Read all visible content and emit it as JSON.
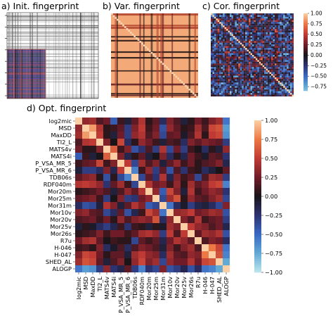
{
  "panels": {
    "a": {
      "title": "a) Init. fingerprint"
    },
    "b": {
      "title": "b) Var. fingerprint"
    },
    "c": {
      "title": "c) Cor. fingerprint"
    },
    "d": {
      "title": "d) Opt. fingerprint"
    }
  },
  "chart_data": [
    {
      "type": "heatmap",
      "panel": "a",
      "title": "a) Init. fingerprint",
      "description_values": "dense binary-like fingerprint matrix, mostly white/grey with black lines, colored band at bottom-left",
      "colors": [
        "#ffffff",
        "#000000",
        "#3b2f8f",
        "#c4505a"
      ]
    },
    {
      "type": "heatmap",
      "panel": "b",
      "title": "b) Var. fingerprint",
      "colors": [
        "#f6b889",
        "#e0753f",
        "#6b1c27",
        "#111111"
      ]
    },
    {
      "type": "heatmap",
      "panel": "c",
      "title": "c) Cor. fingerprint",
      "colorbar_ticks": [
        "1.00",
        "0.75",
        "0.50",
        "0.25",
        "0.00",
        "−0.25",
        "−0.50",
        "−0.75"
      ],
      "vmin": -0.85,
      "vmax": 1.0
    },
    {
      "type": "heatmap",
      "panel": "d",
      "title": "d) Opt. fingerprint",
      "variables": [
        "log2mic",
        "MSD",
        "MaxDD",
        "TI2_L",
        "MATS4v",
        "MATS4i",
        "P_VSA_MR_5",
        "P_VSA_MR_6",
        "TDB06s",
        "RDF040m",
        "Mor20m",
        "Mor25m",
        "Mor31m",
        "Mor10v",
        "Mor20v",
        "Mor25v",
        "Mor26s",
        "R7u",
        "H-046",
        "H-047",
        "SHED_AL",
        "ALOGP"
      ],
      "colorbar_ticks": [
        "1.00",
        "0.75",
        "0.50",
        "0.25",
        "0.00",
        "−0.25",
        "−0.50",
        "−0.75",
        "−1.00"
      ],
      "vmin": -1.0,
      "vmax": 1.0,
      "colormap": "icefire",
      "upper_triangle": [
        [
          0.35,
          0.4,
          0.15,
          0.25,
          -0.45,
          0.1,
          -0.1,
          0.2,
          0.45,
          0.05,
          0.2,
          -0.2,
          0.3,
          0.15,
          -0.1,
          0.05,
          0.25,
          0.1,
          0.3,
          0.4,
          -0.55
        ],
        [
          0.85,
          0.45,
          0.05,
          0.1,
          0.2,
          -0.3,
          0.3,
          0.5,
          0.1,
          0.25,
          -0.4,
          0.35,
          0.2,
          0.05,
          0.1,
          0.4,
          0.15,
          0.55,
          0.6,
          -0.7
        ],
        [
          0.5,
          0.05,
          -0.1,
          0.25,
          -0.3,
          0.35,
          0.45,
          0.15,
          0.3,
          -0.35,
          0.2,
          0.25,
          -0.05,
          0.15,
          0.45,
          0.05,
          0.5,
          0.55,
          -0.65
        ],
        [
          0.3,
          0.0,
          0.55,
          -0.2,
          0.05,
          0.35,
          0.25,
          0.1,
          -0.1,
          0.15,
          0.1,
          -0.2,
          0.3,
          0.2,
          0.3,
          0.25,
          0.2,
          -0.3
        ],
        [
          0.65,
          0.1,
          0.3,
          -0.4,
          -0.25,
          0.15,
          -0.3,
          0.45,
          -0.35,
          0.25,
          -0.3,
          0.1,
          0.0,
          -0.2,
          0.05,
          -0.1,
          0.35
        ],
        [
          0.3,
          -0.15,
          0.05,
          0.2,
          -0.1,
          0.0,
          0.3,
          -0.2,
          0.05,
          -0.15,
          0.25,
          0.1,
          -0.05,
          0.2,
          0.15,
          -0.25
        ],
        [
          0.5,
          -0.35,
          0.4,
          0.15,
          0.3,
          -0.1,
          0.2,
          0.35,
          0.1,
          0.25,
          0.05,
          0.15,
          0.2,
          0.3,
          -0.15
        ],
        [
          -0.6,
          0.1,
          0.35,
          -0.3,
          0.2,
          -0.4,
          0.15,
          -0.25,
          0.1,
          0.05,
          -0.2,
          -0.1,
          0.0,
          0.2
        ],
        [
          -0.35,
          0.2,
          -0.25,
          0.45,
          -0.15,
          0.3,
          0.1,
          0.2,
          -0.35,
          0.15,
          0.4,
          0.35,
          -0.3
        ],
        [
          0.45,
          0.25,
          0.3,
          0.1,
          0.35,
          0.05,
          0.4,
          0.2,
          0.3,
          0.5,
          0.55,
          -0.6
        ],
        [
          0.35,
          -0.45,
          0.55,
          0.3,
          -0.1,
          0.45,
          0.1,
          0.25,
          0.35,
          0.3,
          -0.25
        ],
        [
          -0.35,
          0.4,
          0.6,
          0.05,
          0.35,
          0.2,
          0.15,
          0.3,
          0.4,
          -0.35
        ],
        [
          -0.55,
          -0.2,
          -0.05,
          -0.3,
          -0.15,
          -0.1,
          -0.2,
          -0.35,
          0.3
        ],
        [
          0.35,
          0.4,
          0.5,
          0.25,
          0.3,
          0.4,
          0.35,
          -0.4
        ],
        [
          0.3,
          0.15,
          0.45,
          0.1,
          0.2,
          0.25,
          -0.3
        ],
        [
          0.5,
          0.35,
          0.3,
          0.15,
          0.25,
          -0.15
        ],
        [
          0.2,
          0.4,
          0.35,
          0.45,
          -0.4
        ],
        [
          0.15,
          0.3,
          0.25,
          -0.2
        ],
        [
          0.75,
          0.55,
          -0.55
        ],
        [
          0.6,
          -0.6
        ],
        [
          -0.75
        ]
      ]
    }
  ]
}
